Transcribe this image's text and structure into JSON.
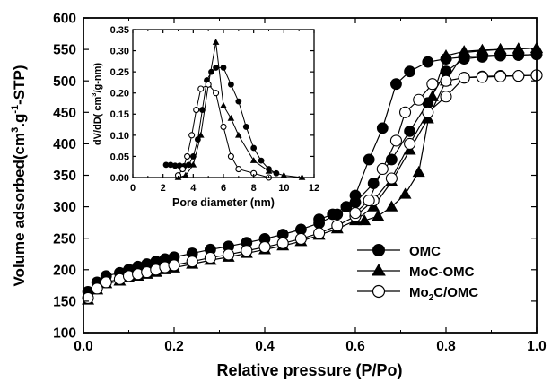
{
  "chart_data": [
    {
      "id": "main",
      "type": "scatter",
      "title": "",
      "xlabel": "Relative pressure (P/Po)",
      "ylabel_parts": [
        "Volume adsorbed(cm",
        "3",
        ".g",
        "-1",
        "-STP)"
      ],
      "xlim": [
        0.0,
        1.0
      ],
      "ylim": [
        100,
        600
      ],
      "xticks": [
        0.0,
        0.2,
        0.4,
        0.6,
        0.8,
        1.0
      ],
      "xtick_labels": [
        "0.0",
        "0.2",
        "0.4",
        "0.6",
        "0.8",
        "1.0"
      ],
      "yticks": [
        100,
        150,
        200,
        250,
        300,
        350,
        400,
        450,
        500,
        550,
        600
      ],
      "ytick_labels": [
        "100",
        "150",
        "200",
        "250",
        "300",
        "350",
        "400",
        "450",
        "500",
        "550",
        "600"
      ],
      "legend_position": "lower-right",
      "grid": false,
      "series": [
        {
          "name_parts": [
            "OMC"
          ],
          "marker": "filled-circle",
          "adsorption": {
            "x": [
              0.01,
              0.03,
              0.05,
              0.08,
              0.1,
              0.12,
              0.14,
              0.16,
              0.18,
              0.2,
              0.24,
              0.28,
              0.32,
              0.36,
              0.4,
              0.44,
              0.48,
              0.52,
              0.56,
              0.6,
              0.64,
              0.68,
              0.72,
              0.76,
              0.8,
              0.84,
              0.88,
              0.92,
              0.96,
              1.0
            ],
            "y": [
              165,
              180,
              190,
              195,
              200,
              205,
              209,
              213,
              217,
              220,
              226,
              232,
              237,
              243,
              249,
              256,
              264,
              274,
              288,
              307,
              337,
              375,
              420,
              465,
              515,
              535,
              538,
              540,
              541,
              542
            ]
          },
          "desorption": {
            "x": [
              1.0,
              0.96,
              0.92,
              0.88,
              0.84,
              0.8,
              0.76,
              0.72,
              0.69,
              0.66,
              0.63,
              0.6,
              0.58,
              0.55,
              0.52
            ],
            "y": [
              542,
              541,
              541,
              540,
              538,
              535,
              530,
              515,
              495,
              425,
              375,
              318,
              300,
              288,
              280
            ]
          }
        },
        {
          "name_parts": [
            "MoC-OMC"
          ],
          "marker": "filled-triangle",
          "adsorption": {
            "x": [
              0.01,
              0.03,
              0.05,
              0.08,
              0.1,
              0.12,
              0.14,
              0.16,
              0.18,
              0.2,
              0.24,
              0.28,
              0.32,
              0.36,
              0.4,
              0.44,
              0.48,
              0.52,
              0.56,
              0.6,
              0.64,
              0.68,
              0.72,
              0.76,
              0.8,
              0.84,
              0.88,
              0.92,
              0.96,
              1.0
            ],
            "y": [
              152,
              168,
              178,
              182,
              187,
              190,
              193,
              196,
              200,
              203,
              209,
              215,
              220,
              226,
              232,
              238,
              245,
              255,
              265,
              278,
              300,
              340,
              390,
              440,
              500,
              545,
              548,
              550,
              551,
              552
            ]
          },
          "desorption": {
            "x": [
              1.0,
              0.96,
              0.92,
              0.88,
              0.84,
              0.8,
              0.77,
              0.74,
              0.71,
              0.68,
              0.65,
              0.62
            ],
            "y": [
              552,
              551,
              550,
              549,
              547,
              540,
              475,
              355,
              320,
              300,
              285,
              278
            ]
          }
        },
        {
          "name_parts": [
            "Mo",
            "2",
            "C/OMC"
          ],
          "marker": "open-circle",
          "adsorption": {
            "x": [
              0.01,
              0.03,
              0.05,
              0.08,
              0.1,
              0.12,
              0.14,
              0.16,
              0.18,
              0.2,
              0.24,
              0.28,
              0.32,
              0.36,
              0.4,
              0.44,
              0.48,
              0.52,
              0.56,
              0.6,
              0.64,
              0.68,
              0.72,
              0.76,
              0.8,
              0.84,
              0.88,
              0.92,
              0.96,
              1.0
            ],
            "y": [
              155,
              170,
              180,
              185,
              190,
              193,
              196,
              200,
              204,
              207,
              213,
              219,
              224,
              230,
              236,
              242,
              249,
              258,
              270,
              285,
              310,
              345,
              400,
              450,
              475,
              505,
              507,
              508,
              508,
              509
            ]
          },
          "desorption": {
            "x": [
              1.0,
              0.96,
              0.92,
              0.88,
              0.84,
              0.8,
              0.77,
              0.74,
              0.71,
              0.69,
              0.66,
              0.63,
              0.6
            ],
            "y": [
              509,
              508,
              507,
              506,
              505,
              500,
              495,
              470,
              450,
              405,
              360,
              310,
              290
            ]
          }
        }
      ]
    },
    {
      "id": "inset",
      "type": "line",
      "title": "",
      "xlabel": "Pore diameter (nm)",
      "ylabel_parts": [
        "dV/dD( cm",
        "3",
        "/g-nm)"
      ],
      "xlim": [
        0,
        12
      ],
      "ylim": [
        0.0,
        0.35
      ],
      "xticks": [
        0,
        2,
        4,
        6,
        8,
        10,
        12
      ],
      "xtick_labels": [
        "0",
        "2",
        "4",
        "6",
        "8",
        "10",
        "12"
      ],
      "yticks": [
        0.0,
        0.05,
        0.1,
        0.15,
        0.2,
        0.25,
        0.3,
        0.35
      ],
      "ytick_labels": [
        "0.00",
        "0.05",
        "0.10",
        "0.15",
        "0.20",
        "0.25",
        "0.30",
        "0.35"
      ],
      "grid": false,
      "series": [
        {
          "marker": "filled-circle",
          "x": [
            2.2,
            2.5,
            2.8,
            3.1,
            3.4,
            3.7,
            4.0,
            4.3,
            4.6,
            4.9,
            5.2,
            5.5,
            6.0,
            6.5,
            7.0,
            7.5,
            8.0,
            8.5,
            9.0,
            9.5
          ],
          "y": [
            0.03,
            0.03,
            0.028,
            0.028,
            0.027,
            0.03,
            0.05,
            0.09,
            0.16,
            0.23,
            0.25,
            0.26,
            0.26,
            0.22,
            0.18,
            0.12,
            0.07,
            0.04,
            0.02,
            0.01
          ]
        },
        {
          "marker": "filled-triangle",
          "x": [
            3.0,
            3.5,
            4.0,
            4.5,
            5.0,
            5.5,
            6.0,
            6.5,
            7.0,
            8.0,
            9.0,
            10.0,
            11.2
          ],
          "y": [
            0.0,
            0.005,
            0.03,
            0.1,
            0.22,
            0.32,
            0.17,
            0.14,
            0.1,
            0.04,
            0.015,
            0.005,
            0.0
          ]
        },
        {
          "marker": "open-circle",
          "x": [
            3.0,
            3.3,
            3.6,
            3.9,
            4.2,
            4.5,
            5.0,
            5.5,
            6.0,
            6.5,
            7.0,
            8.0,
            9.0
          ],
          "y": [
            0.005,
            0.02,
            0.05,
            0.1,
            0.16,
            0.21,
            0.22,
            0.2,
            0.12,
            0.05,
            0.02,
            0.01,
            0.0
          ]
        }
      ]
    }
  ]
}
